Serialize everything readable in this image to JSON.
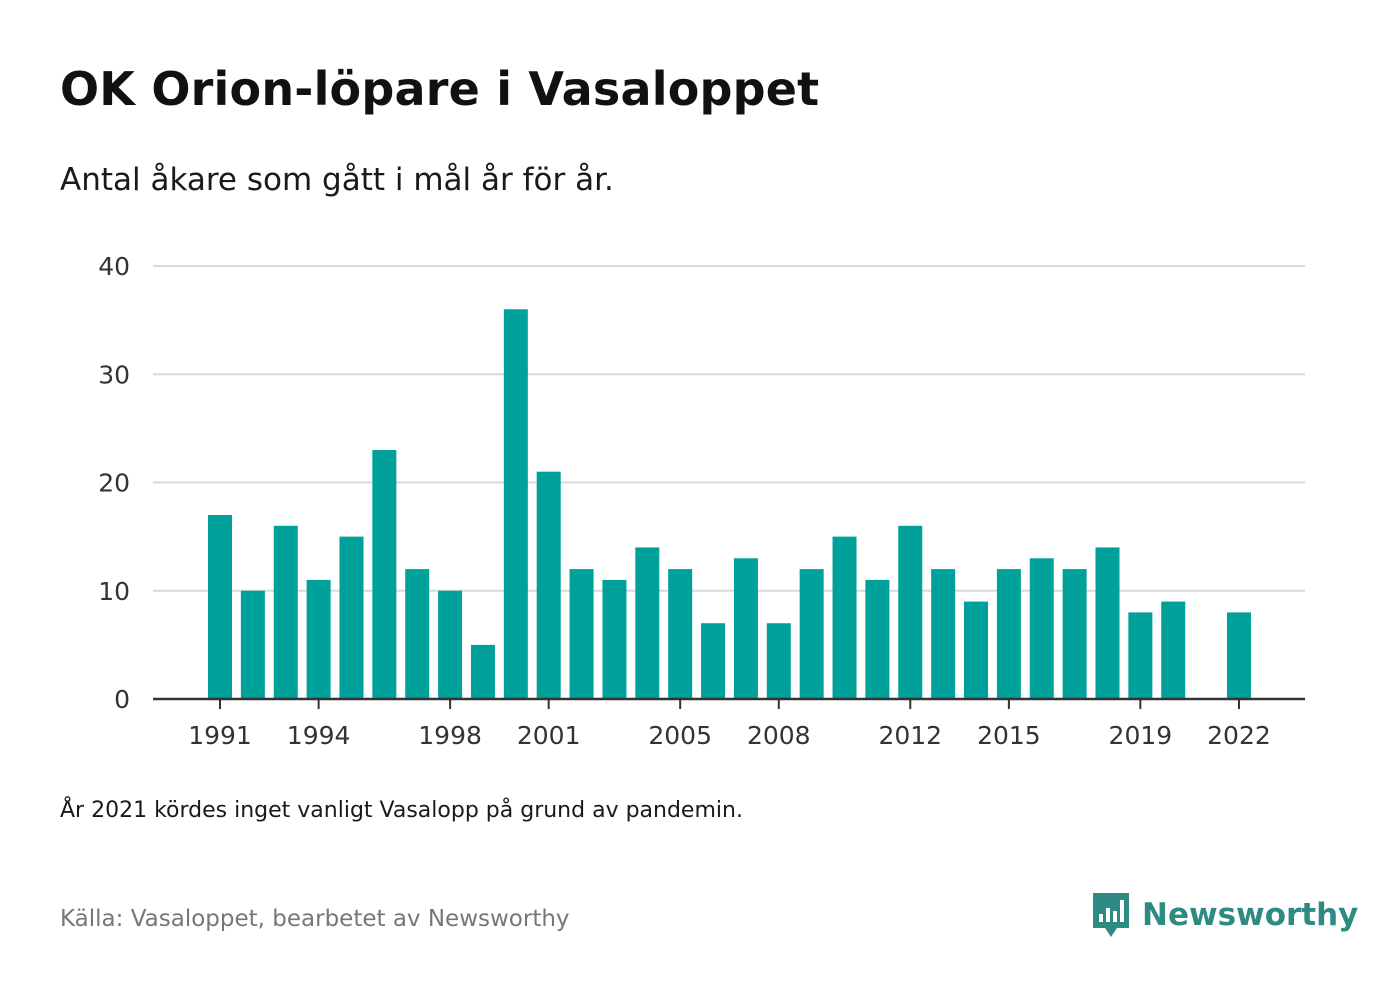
{
  "title": "OK Orion-löpare i Vasaloppet",
  "subtitle": "Antal åkare som gått i mål år för år.",
  "note": "År 2021 kördes inget vanligt Vasalopp på grund av pandemin.",
  "source": "Källa: Vasaloppet, bearbetet av Newsworthy",
  "brand": {
    "name": "Newsworthy",
    "icon": "newsworthy-logo-icon",
    "color": "#2e8b84"
  },
  "chart_data": {
    "type": "bar",
    "title": "OK Orion-löpare i Vasaloppet",
    "subtitle": "Antal åkare som gått i mål år för år.",
    "xlabel": "",
    "ylabel": "",
    "ylim": [
      0,
      40
    ],
    "yticks": [
      0,
      10,
      20,
      30,
      40
    ],
    "xticks": [
      1991,
      1994,
      1998,
      2001,
      2005,
      2008,
      2012,
      2015,
      2019,
      2022
    ],
    "grid": true,
    "bar_color": "#00a19a",
    "categories": [
      1991,
      1992,
      1993,
      1994,
      1995,
      1996,
      1997,
      1998,
      1999,
      2000,
      2001,
      2002,
      2003,
      2004,
      2005,
      2006,
      2007,
      2008,
      2009,
      2010,
      2011,
      2012,
      2013,
      2014,
      2015,
      2016,
      2017,
      2018,
      2019,
      2020,
      2021,
      2022
    ],
    "values": [
      17,
      10,
      16,
      11,
      15,
      23,
      12,
      10,
      5,
      36,
      21,
      12,
      11,
      14,
      12,
      7,
      13,
      7,
      12,
      15,
      11,
      16,
      12,
      9,
      12,
      13,
      12,
      14,
      8,
      9,
      null,
      8
    ]
  }
}
